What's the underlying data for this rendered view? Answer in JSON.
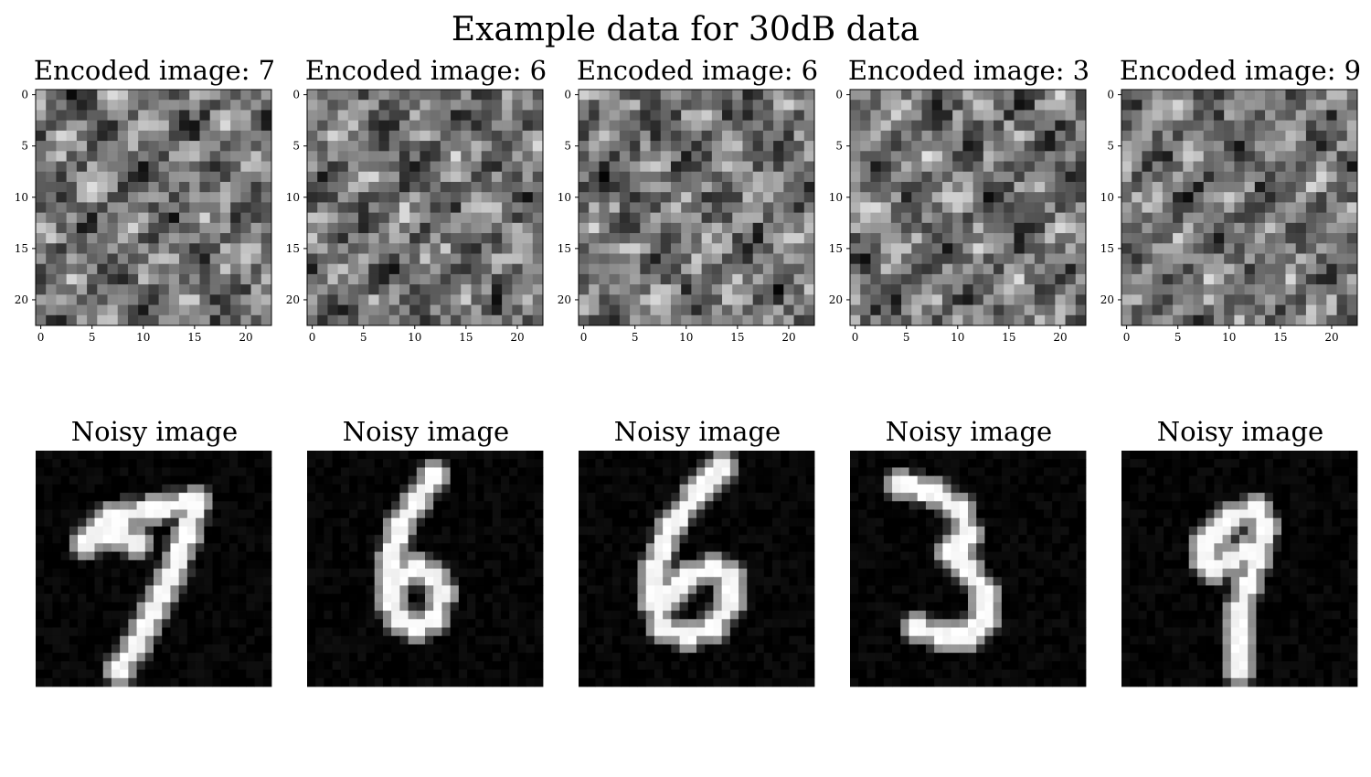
{
  "figure": {
    "title": "Example data for 30dB data"
  },
  "chart_data": {
    "type": "heatmap",
    "colormap": "gray",
    "encoded_grid_size": 23,
    "noisy_grid_size": 28,
    "axis_ticks": [
      "0",
      "5",
      "10",
      "15",
      "20"
    ],
    "panels": [
      {
        "encoded_title": "Encoded image: 7",
        "noisy_title": "Noisy image",
        "digit": "7"
      },
      {
        "encoded_title": "Encoded image: 6",
        "noisy_title": "Noisy image",
        "digit": "6"
      },
      {
        "encoded_title": "Encoded image: 6",
        "noisy_title": "Noisy image",
        "digit": "6"
      },
      {
        "encoded_title": "Encoded image: 3",
        "noisy_title": "Noisy image",
        "digit": "3"
      },
      {
        "encoded_title": "Encoded image: 9",
        "noisy_title": "Noisy image",
        "digit": "9"
      }
    ]
  }
}
